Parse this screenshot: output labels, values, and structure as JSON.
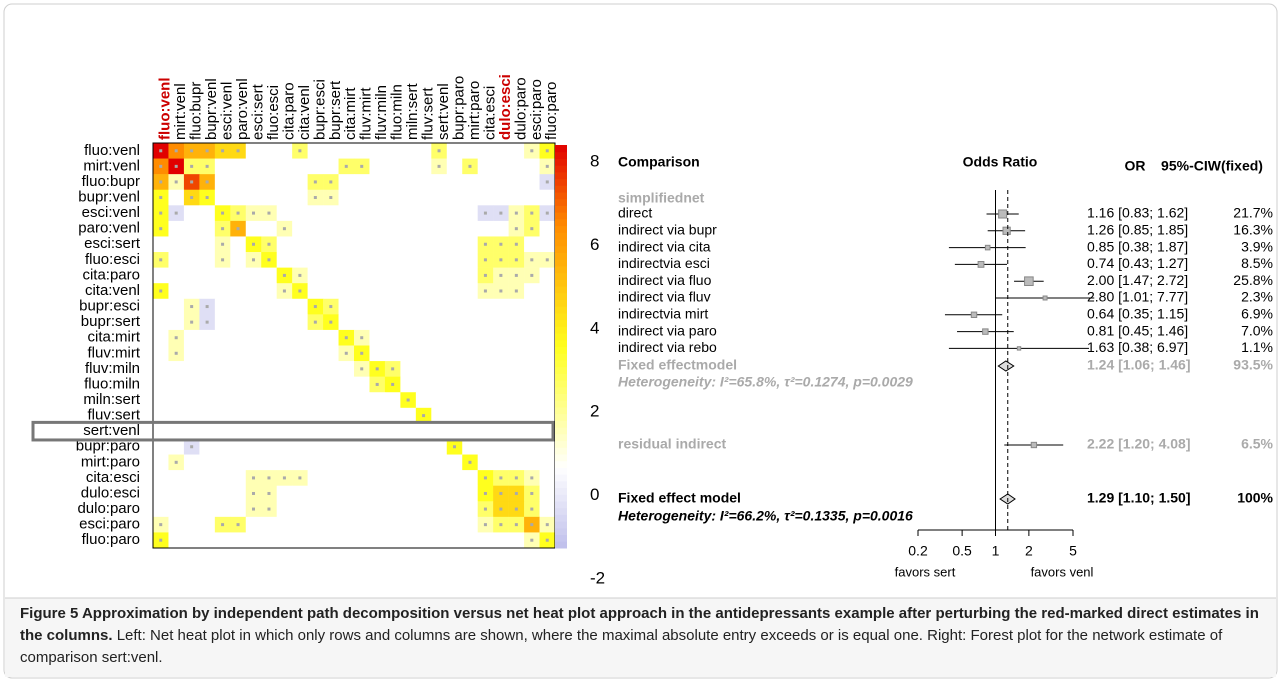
{
  "heatmap": {
    "columns": [
      "fluo:venl",
      "mirt:venl",
      "fluo:bupr",
      "bupr:venl",
      "esci:venl",
      "paro:venl",
      "esci:sert",
      "fluo:esci",
      "cita:paro",
      "cita:venl",
      "bupr:esci",
      "bupr:sert",
      "cita:mirt",
      "fluv:mirt",
      "fluv:miln",
      "fluo:miln",
      "miln:sert",
      "fluv:sert",
      "sert:venl",
      "bupr:paro",
      "mirt:paro",
      "cita:esci",
      "dulo:esci",
      "dulo:paro",
      "esci:paro",
      "fluo:paro"
    ],
    "rows": [
      "fluo:venl",
      "mirt:venl",
      "fluo:bupr",
      "bupr:venl",
      "esci:venl",
      "paro:venl",
      "esci:sert",
      "fluo:esci",
      "cita:paro",
      "cita:venl",
      "bupr:esci",
      "bupr:sert",
      "cita:mirt",
      "fluv:mirt",
      "fluv:miln",
      "fluo:miln",
      "miln:sert",
      "fluv:sert",
      "sert:venl",
      "bupr:paro",
      "mirt:paro",
      "cita:esci",
      "dulo:esci",
      "dulo:paro",
      "esci:paro",
      "fluo:paro"
    ],
    "highlighted_columns": [
      0,
      22
    ],
    "highlighted_row": 18,
    "values": [
      [
        8,
        6,
        5,
        5,
        4,
        4,
        0,
        0,
        0,
        2,
        0,
        0,
        0,
        0,
        0,
        0,
        0,
        0,
        2,
        0,
        0,
        0,
        0,
        0,
        1,
        3
      ],
      [
        6,
        8,
        2,
        2,
        0,
        0,
        0,
        0,
        0,
        0,
        0,
        0,
        2,
        2,
        0,
        0,
        0,
        0,
        1,
        0,
        2,
        0,
        0,
        0,
        0,
        1
      ],
      [
        5,
        1,
        7,
        5,
        0,
        0,
        0,
        0,
        0,
        0,
        2,
        2,
        0,
        0,
        0,
        0,
        0,
        0,
        0,
        0,
        0,
        0,
        0,
        0,
        0,
        -1
      ],
      [
        3,
        0,
        4,
        3,
        0,
        0,
        0,
        0,
        0,
        0,
        1,
        1,
        0,
        0,
        0,
        0,
        0,
        0,
        0,
        0,
        0,
        0,
        0,
        0,
        0,
        0
      ],
      [
        3,
        -1,
        0,
        0,
        3,
        2,
        1,
        1,
        0,
        0,
        0,
        0,
        0,
        0,
        0,
        0,
        0,
        0,
        0,
        0,
        0,
        -1,
        -1,
        1,
        2,
        -1
      ],
      [
        3,
        0,
        0,
        0,
        2,
        5,
        0,
        0,
        1,
        0,
        0,
        0,
        0,
        0,
        0,
        0,
        0,
        0,
        0,
        0,
        0,
        0,
        0,
        1,
        2,
        0
      ],
      [
        0,
        0,
        0,
        0,
        1,
        0,
        3,
        2,
        0,
        0,
        0,
        0,
        0,
        0,
        0,
        0,
        0,
        0,
        0,
        0,
        0,
        2,
        2,
        2,
        0,
        0
      ],
      [
        2,
        0,
        0,
        0,
        1,
        0,
        1,
        3,
        0,
        0,
        0,
        0,
        0,
        0,
        0,
        0,
        0,
        0,
        0,
        0,
        0,
        2,
        2,
        2,
        1,
        1
      ],
      [
        0,
        0,
        0,
        0,
        0,
        0,
        0,
        0,
        3,
        1,
        0,
        0,
        0,
        0,
        0,
        0,
        0,
        0,
        0,
        0,
        0,
        2,
        1,
        1,
        1,
        0
      ],
      [
        3,
        0,
        0,
        0,
        0,
        0,
        0,
        0,
        1,
        3,
        0,
        0,
        0,
        0,
        0,
        0,
        0,
        0,
        0,
        0,
        0,
        1,
        1,
        1,
        0,
        0
      ],
      [
        0,
        0,
        1,
        -1,
        0,
        0,
        0,
        0,
        0,
        0,
        3,
        2,
        0,
        0,
        0,
        0,
        0,
        0,
        0,
        0,
        0,
        0,
        0,
        0,
        0,
        0
      ],
      [
        0,
        0,
        1,
        -1,
        0,
        0,
        0,
        0,
        0,
        0,
        2,
        3,
        0,
        0,
        0,
        0,
        0,
        0,
        0,
        0,
        0,
        0,
        0,
        0,
        0,
        0
      ],
      [
        0,
        1,
        0,
        0,
        0,
        0,
        0,
        0,
        0,
        0,
        0,
        0,
        3,
        1,
        0,
        0,
        0,
        0,
        0,
        0,
        0,
        0,
        0,
        0,
        0,
        0
      ],
      [
        0,
        1,
        0,
        0,
        0,
        0,
        0,
        0,
        0,
        0,
        0,
        0,
        1,
        3,
        0,
        0,
        0,
        0,
        0,
        0,
        0,
        0,
        0,
        0,
        0,
        0
      ],
      [
        0,
        0,
        0,
        0,
        0,
        0,
        0,
        0,
        0,
        0,
        0,
        0,
        0,
        1,
        3,
        2,
        0,
        0,
        0,
        0,
        0,
        0,
        0,
        0,
        0,
        0
      ],
      [
        0,
        0,
        0,
        0,
        0,
        0,
        0,
        0,
        0,
        0,
        0,
        0,
        0,
        0,
        2,
        3,
        0,
        0,
        0,
        0,
        0,
        0,
        0,
        0,
        0,
        0
      ],
      [
        0,
        0,
        0,
        0,
        0,
        0,
        0,
        0,
        0,
        0,
        0,
        0,
        0,
        0,
        0,
        0,
        3,
        0,
        0,
        0,
        0,
        0,
        0,
        0,
        0,
        0
      ],
      [
        0,
        0,
        0,
        0,
        0,
        0,
        0,
        0,
        0,
        0,
        0,
        0,
        0,
        0,
        0,
        0,
        0,
        3,
        0,
        0,
        0,
        0,
        0,
        0,
        0,
        0
      ],
      [
        0,
        0,
        0,
        0,
        0,
        0,
        0,
        0,
        0,
        0,
        0,
        0,
        0,
        0,
        0,
        0,
        0,
        0,
        0,
        0,
        0,
        0,
        0,
        0,
        0,
        0
      ],
      [
        0,
        0,
        -1,
        0,
        0,
        0,
        0,
        0,
        0,
        0,
        0,
        0,
        0,
        0,
        0,
        0,
        0,
        0,
        0,
        3,
        0,
        0,
        0,
        0,
        0,
        0
      ],
      [
        0,
        1,
        0,
        0,
        0,
        0,
        0,
        0,
        0,
        0,
        0,
        0,
        0,
        0,
        0,
        0,
        0,
        0,
        0,
        0,
        3,
        0,
        0,
        0,
        0,
        0
      ],
      [
        0,
        0,
        0,
        0,
        0,
        0,
        1,
        1,
        1,
        1,
        0,
        0,
        0,
        0,
        0,
        0,
        0,
        0,
        0,
        0,
        0,
        3,
        2,
        2,
        1,
        0
      ],
      [
        0,
        0,
        0,
        0,
        0,
        0,
        1,
        1,
        0,
        0,
        0,
        0,
        0,
        0,
        0,
        0,
        0,
        0,
        0,
        0,
        0,
        3,
        4,
        4,
        2,
        0
      ],
      [
        0,
        0,
        0,
        0,
        0,
        0,
        1,
        1,
        0,
        0,
        0,
        0,
        0,
        0,
        0,
        0,
        0,
        0,
        0,
        0,
        0,
        2,
        4,
        4,
        2,
        0
      ],
      [
        1,
        0,
        0,
        0,
        2,
        2,
        0,
        0,
        0,
        0,
        0,
        0,
        0,
        0,
        0,
        0,
        0,
        0,
        0,
        0,
        0,
        1,
        2,
        2,
        5,
        1
      ],
      [
        3,
        0,
        0,
        0,
        0,
        0,
        0,
        0,
        0,
        0,
        0,
        0,
        0,
        0,
        0,
        0,
        0,
        0,
        0,
        0,
        0,
        0,
        0,
        0,
        1,
        3
      ]
    ],
    "colorbar_lim": [
      -2,
      8
    ],
    "colorbar_ticks": [
      8,
      6,
      4,
      2,
      0,
      -2
    ]
  },
  "forest": {
    "header": {
      "comparison": "Comparison",
      "odds_ratio": "Odds Ratio",
      "or": "OR",
      "ci": "95%-CIW(fixed)"
    },
    "group": "simplifiednet",
    "rows": [
      {
        "label": "direct",
        "or": 1.16,
        "lo": 0.83,
        "hi": 1.62,
        "weight": 21.7,
        "value_label": "1.16 [0.83; 1.62]",
        "weight_label": "21.7%"
      },
      {
        "label": "indirect via bupr",
        "or": 1.26,
        "lo": 0.85,
        "hi": 1.85,
        "weight": 16.3,
        "value_label": "1.26 [0.85; 1.85]",
        "weight_label": "16.3%"
      },
      {
        "label": "indirect via cita",
        "or": 0.85,
        "lo": 0.38,
        "hi": 1.87,
        "weight": 3.9,
        "value_label": "0.85 [0.38; 1.87]",
        "weight_label": "3.9%"
      },
      {
        "label": "indirectvia esci",
        "or": 0.74,
        "lo": 0.43,
        "hi": 1.27,
        "weight": 8.5,
        "value_label": "0.74 [0.43; 1.27]",
        "weight_label": "8.5%"
      },
      {
        "label": "indirect via fluo",
        "or": 2.0,
        "lo": 1.47,
        "hi": 2.72,
        "weight": 25.8,
        "value_label": "2.00 [1.47; 2.72]",
        "weight_label": "25.8%"
      },
      {
        "label": "indirect via fluv",
        "or": 2.8,
        "lo": 1.01,
        "hi": 7.77,
        "weight": 2.3,
        "value_label": "2.80 [1.01; 7.77]",
        "weight_label": "2.3%"
      },
      {
        "label": "indirectvia mirt",
        "or": 0.64,
        "lo": 0.35,
        "hi": 1.15,
        "weight": 6.9,
        "value_label": "0.64 [0.35; 1.15]",
        "weight_label": "6.9%"
      },
      {
        "label": "indirect via paro",
        "or": 0.81,
        "lo": 0.45,
        "hi": 1.46,
        "weight": 7.0,
        "value_label": "0.81 [0.45; 1.46]",
        "weight_label": "7.0%"
      },
      {
        "label": "indirect via rebo",
        "or": 1.63,
        "lo": 0.38,
        "hi": 6.97,
        "weight": 1.1,
        "value_label": "1.63 [0.38; 6.97]",
        "weight_label": "1.1%"
      }
    ],
    "fixed": {
      "label": "Fixed effectmodel",
      "or": 1.24,
      "lo": 1.06,
      "hi": 1.46,
      "weight": 93.5,
      "value_label": "1.24 [1.06; 1.46]",
      "weight_label": "93.5%"
    },
    "heterogeneity": "Heterogeneity: I²=65.8%, τ²=0.1274, p=0.0029",
    "residual": {
      "label": "residual indirect",
      "or": 2.22,
      "lo": 1.2,
      "hi": 4.08,
      "weight": 6.5,
      "value_label": "2.22 [1.20; 4.08]",
      "weight_label": "6.5%"
    },
    "total": {
      "label": "Fixed effect model",
      "or": 1.29,
      "lo": 1.1,
      "hi": 1.5,
      "weight": 100,
      "value_label": "1.29 [1.10; 1.50]",
      "weight_label": "100%"
    },
    "total_heterogeneity": "Heterogeneity: I²=66.2%, τ²=0.1335, p=0.0016",
    "log_scale": true,
    "xlim": [
      0.2,
      5
    ],
    "xticks": [
      0.2,
      0.5,
      1,
      2,
      5
    ],
    "left_label": "favors sert",
    "right_label": "favors venl"
  },
  "caption": {
    "title": "Figure 5 Approximation by independent path decomposition versus net heat plot approach in the antidepressants example after perturbing the red-marked direct estimates in the columns.",
    "text": "Left: Net heat plot in which only rows and columns are shown, where the maximal absolute entry exceeds or is equal one. Right: Forest plot for the network estimate of comparison sert:venl."
  }
}
